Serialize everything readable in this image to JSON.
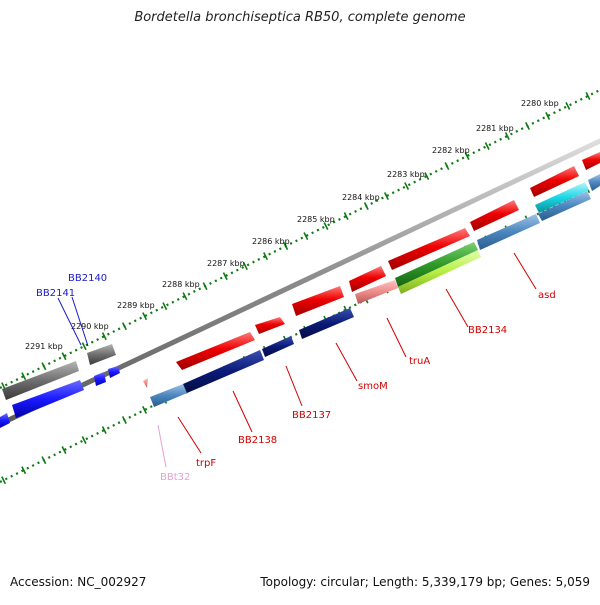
{
  "title": "Bordetella bronchiseptica RB50, complete genome",
  "accession": "Accession: NC_002927",
  "summary": "Topology: circular; Length: 5,339,179 bp; Genes: 5,059",
  "kbp_labels": [
    "2280 kbp",
    "2281 kbp",
    "2282 kbp",
    "2283 kbp",
    "2284 kbp",
    "2285 kbp",
    "2286 kbp",
    "2287 kbp",
    "2288 kbp",
    "2289 kbp",
    "2290 kbp",
    "2291 kbp"
  ],
  "gene_labels": {
    "bb2141": "BB2141",
    "bb2140": "BB2140",
    "asd": "asd",
    "bb2134": "BB2134",
    "truA": "truA",
    "smoM": "smoM",
    "bb2137": "BB2137",
    "bb2138": "BB2138",
    "trpF": "trpF",
    "bbt32": "BBt32"
  },
  "colors": {
    "red": "#e8001c",
    "navy": "#0a1a78",
    "steelblue": "#4a86bf",
    "grey": "#6f6f6f",
    "blue": "#1a1aff",
    "cyan": "#19d7e6",
    "green": "#2f9a28",
    "lightgreen": "#b6ee43",
    "pink": "#ee8a8a",
    "label_red": "#d40000",
    "label_blue": "#1a1acc",
    "label_pink": "#e7a2d3",
    "tick_green": "#0d7a12"
  }
}
